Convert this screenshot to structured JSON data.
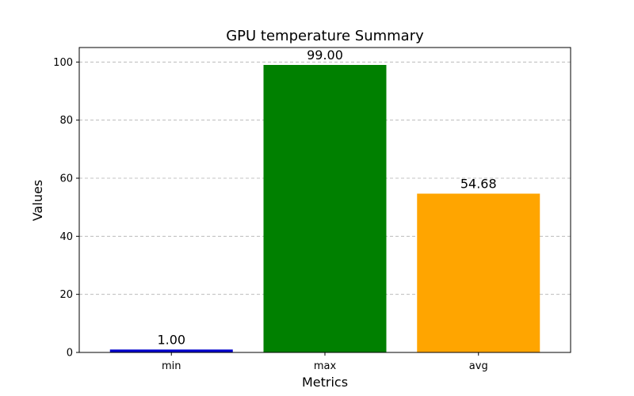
{
  "chart_data": {
    "type": "bar",
    "title": "GPU temperature Summary",
    "xlabel": "Metrics",
    "ylabel": "Values",
    "categories": [
      "min",
      "max",
      "avg"
    ],
    "values": [
      1.0,
      99.0,
      54.68
    ],
    "data_labels": [
      "1.00",
      "99.00",
      "54.68"
    ],
    "colors": [
      "#0000cd",
      "#008000",
      "#ffa500"
    ],
    "ylim": [
      0,
      105
    ],
    "yticks": [
      0,
      20,
      40,
      60,
      80,
      100
    ],
    "grid": "y-axis dashed",
    "legend": "none"
  }
}
